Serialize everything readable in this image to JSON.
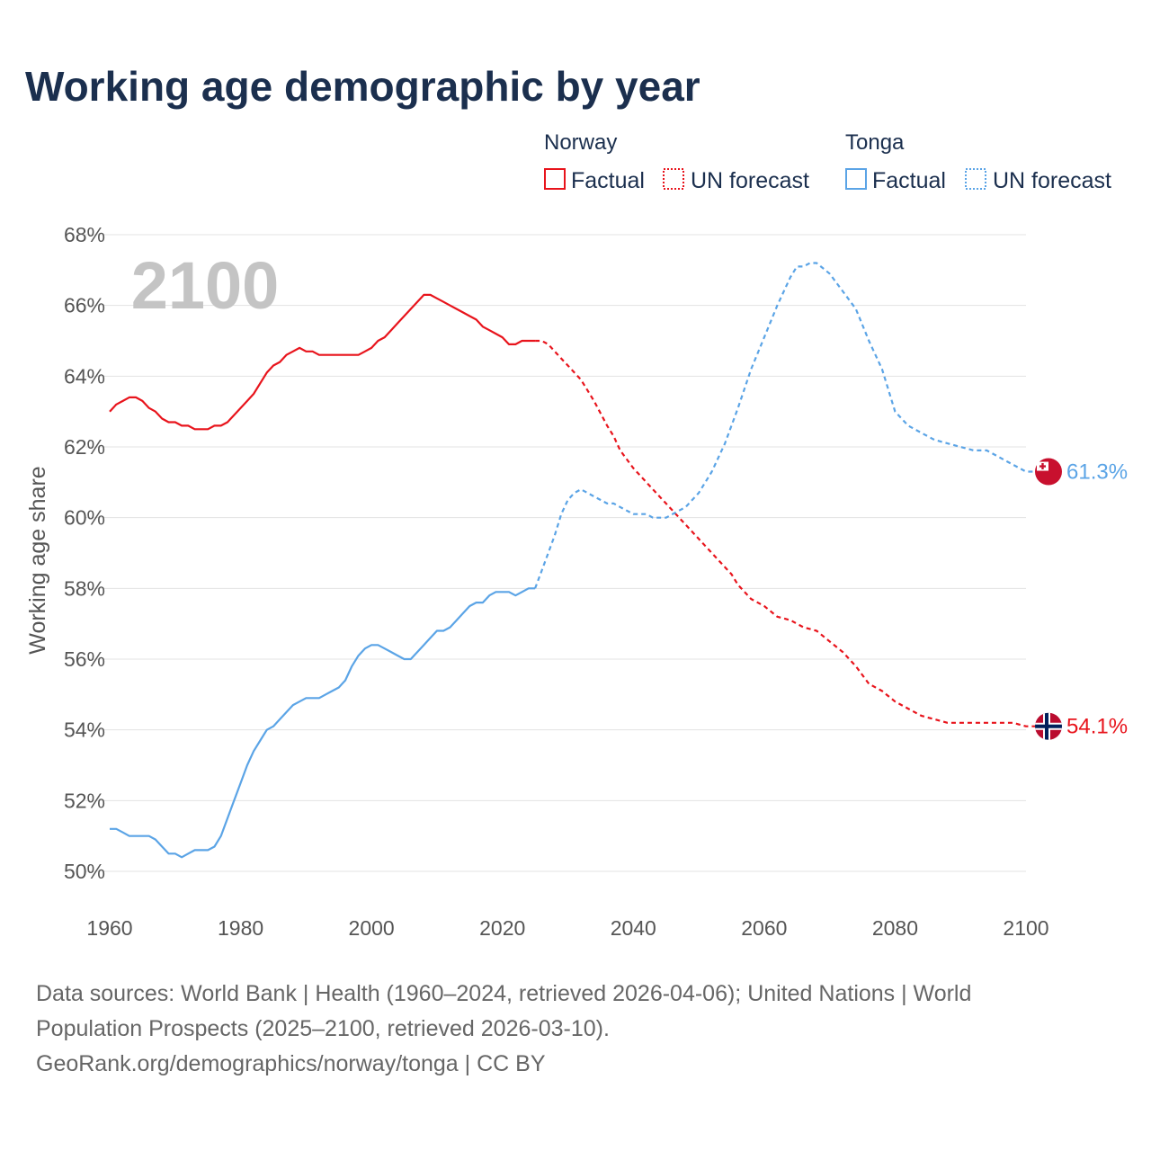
{
  "title": "Working age demographic by year",
  "year_label": "2100",
  "legend": {
    "groups": [
      {
        "name": "Norway",
        "color": "#e8141c",
        "items": [
          {
            "label": "Factual",
            "style": "solid"
          },
          {
            "label": "UN forecast",
            "style": "dotted"
          }
        ]
      },
      {
        "name": "Tonga",
        "color": "#5ba4e6",
        "items": [
          {
            "label": "Factual",
            "style": "solid"
          },
          {
            "label": "UN forecast",
            "style": "dotted"
          }
        ]
      }
    ]
  },
  "end_labels": {
    "norway": "54.1%",
    "tonga": "61.3%"
  },
  "flags": {
    "norway": "norway-flag-icon",
    "tonga": "tonga-flag-icon"
  },
  "source": {
    "line1": "Data sources: World Bank | Health (1960–2024, retrieved 2026-04-06); United Nations | World",
    "line2": "Population Prospects (2025–2100, retrieved 2026-03-10).",
    "line3": "GeoRank.org/demographics/norway/tonga | CC BY"
  },
  "chart_data": {
    "type": "line",
    "title": "Working age demographic by year",
    "xlabel": "",
    "ylabel": "Working age share",
    "xlim": [
      1960,
      2103
    ],
    "ylim": [
      49,
      69
    ],
    "x_ticks": [
      "1960",
      "1980",
      "2000",
      "2020",
      "2040",
      "2060",
      "2080",
      "2100"
    ],
    "y_ticks": [
      "50%",
      "52%",
      "54%",
      "56%",
      "58%",
      "60%",
      "62%",
      "64%",
      "66%",
      "68%"
    ],
    "forecast_start": 2025,
    "series": [
      {
        "name": "Norway",
        "color": "#e8141c",
        "final_value": 54.1,
        "points": [
          [
            1960,
            63.0
          ],
          [
            1961,
            63.2
          ],
          [
            1962,
            63.3
          ],
          [
            1963,
            63.4
          ],
          [
            1964,
            63.4
          ],
          [
            1965,
            63.3
          ],
          [
            1966,
            63.1
          ],
          [
            1967,
            63.0
          ],
          [
            1968,
            62.8
          ],
          [
            1969,
            62.7
          ],
          [
            1970,
            62.7
          ],
          [
            1971,
            62.6
          ],
          [
            1972,
            62.6
          ],
          [
            1973,
            62.5
          ],
          [
            1974,
            62.5
          ],
          [
            1975,
            62.5
          ],
          [
            1976,
            62.6
          ],
          [
            1977,
            62.6
          ],
          [
            1978,
            62.7
          ],
          [
            1979,
            62.9
          ],
          [
            1980,
            63.1
          ],
          [
            1981,
            63.3
          ],
          [
            1982,
            63.5
          ],
          [
            1983,
            63.8
          ],
          [
            1984,
            64.1
          ],
          [
            1985,
            64.3
          ],
          [
            1986,
            64.4
          ],
          [
            1987,
            64.6
          ],
          [
            1988,
            64.7
          ],
          [
            1989,
            64.8
          ],
          [
            1990,
            64.7
          ],
          [
            1991,
            64.7
          ],
          [
            1992,
            64.6
          ],
          [
            1993,
            64.6
          ],
          [
            1994,
            64.6
          ],
          [
            1995,
            64.6
          ],
          [
            1996,
            64.6
          ],
          [
            1997,
            64.6
          ],
          [
            1998,
            64.6
          ],
          [
            1999,
            64.7
          ],
          [
            2000,
            64.8
          ],
          [
            2001,
            65.0
          ],
          [
            2002,
            65.1
          ],
          [
            2003,
            65.3
          ],
          [
            2004,
            65.5
          ],
          [
            2005,
            65.7
          ],
          [
            2006,
            65.9
          ],
          [
            2007,
            66.1
          ],
          [
            2008,
            66.3
          ],
          [
            2009,
            66.3
          ],
          [
            2010,
            66.2
          ],
          [
            2011,
            66.1
          ],
          [
            2012,
            66.0
          ],
          [
            2013,
            65.9
          ],
          [
            2014,
            65.8
          ],
          [
            2015,
            65.7
          ],
          [
            2016,
            65.6
          ],
          [
            2017,
            65.4
          ],
          [
            2018,
            65.3
          ],
          [
            2019,
            65.2
          ],
          [
            2020,
            65.1
          ],
          [
            2021,
            64.9
          ],
          [
            2022,
            64.9
          ],
          [
            2023,
            65.0
          ],
          [
            2024,
            65.0
          ],
          [
            2025,
            65.0
          ],
          [
            2026,
            65.0
          ],
          [
            2027,
            64.9
          ],
          [
            2028,
            64.7
          ],
          [
            2029,
            64.5
          ],
          [
            2030,
            64.3
          ],
          [
            2032,
            63.9
          ],
          [
            2034,
            63.3
          ],
          [
            2036,
            62.6
          ],
          [
            2037,
            62.3
          ],
          [
            2038,
            61.9
          ],
          [
            2040,
            61.4
          ],
          [
            2042,
            61.0
          ],
          [
            2044,
            60.6
          ],
          [
            2046,
            60.2
          ],
          [
            2048,
            59.8
          ],
          [
            2050,
            59.4
          ],
          [
            2052,
            59.0
          ],
          [
            2054,
            58.6
          ],
          [
            2055,
            58.4
          ],
          [
            2056,
            58.1
          ],
          [
            2058,
            57.7
          ],
          [
            2060,
            57.5
          ],
          [
            2062,
            57.2
          ],
          [
            2064,
            57.1
          ],
          [
            2066,
            56.9
          ],
          [
            2068,
            56.8
          ],
          [
            2070,
            56.5
          ],
          [
            2072,
            56.2
          ],
          [
            2074,
            55.8
          ],
          [
            2076,
            55.3
          ],
          [
            2078,
            55.1
          ],
          [
            2080,
            54.8
          ],
          [
            2082,
            54.6
          ],
          [
            2084,
            54.4
          ],
          [
            2086,
            54.3
          ],
          [
            2088,
            54.2
          ],
          [
            2090,
            54.2
          ],
          [
            2094,
            54.2
          ],
          [
            2098,
            54.2
          ],
          [
            2100,
            54.1
          ],
          [
            2102,
            54.1
          ]
        ]
      },
      {
        "name": "Tonga",
        "color": "#5ba4e6",
        "final_value": 61.3,
        "points": [
          [
            1960,
            51.2
          ],
          [
            1961,
            51.2
          ],
          [
            1962,
            51.1
          ],
          [
            1963,
            51.0
          ],
          [
            1964,
            51.0
          ],
          [
            1965,
            51.0
          ],
          [
            1966,
            51.0
          ],
          [
            1967,
            50.9
          ],
          [
            1968,
            50.7
          ],
          [
            1969,
            50.5
          ],
          [
            1970,
            50.5
          ],
          [
            1971,
            50.4
          ],
          [
            1972,
            50.5
          ],
          [
            1973,
            50.6
          ],
          [
            1974,
            50.6
          ],
          [
            1975,
            50.6
          ],
          [
            1976,
            50.7
          ],
          [
            1977,
            51.0
          ],
          [
            1978,
            51.5
          ],
          [
            1979,
            52.0
          ],
          [
            1980,
            52.5
          ],
          [
            1981,
            53.0
          ],
          [
            1982,
            53.4
          ],
          [
            1983,
            53.7
          ],
          [
            1984,
            54.0
          ],
          [
            1985,
            54.1
          ],
          [
            1986,
            54.3
          ],
          [
            1987,
            54.5
          ],
          [
            1988,
            54.7
          ],
          [
            1989,
            54.8
          ],
          [
            1990,
            54.9
          ],
          [
            1991,
            54.9
          ],
          [
            1992,
            54.9
          ],
          [
            1993,
            55.0
          ],
          [
            1994,
            55.1
          ],
          [
            1995,
            55.2
          ],
          [
            1996,
            55.4
          ],
          [
            1997,
            55.8
          ],
          [
            1998,
            56.1
          ],
          [
            1999,
            56.3
          ],
          [
            2000,
            56.4
          ],
          [
            2001,
            56.4
          ],
          [
            2002,
            56.3
          ],
          [
            2003,
            56.2
          ],
          [
            2004,
            56.1
          ],
          [
            2005,
            56.0
          ],
          [
            2006,
            56.0
          ],
          [
            2007,
            56.2
          ],
          [
            2008,
            56.4
          ],
          [
            2009,
            56.6
          ],
          [
            2010,
            56.8
          ],
          [
            2011,
            56.8
          ],
          [
            2012,
            56.9
          ],
          [
            2013,
            57.1
          ],
          [
            2014,
            57.3
          ],
          [
            2015,
            57.5
          ],
          [
            2016,
            57.6
          ],
          [
            2017,
            57.6
          ],
          [
            2018,
            57.8
          ],
          [
            2019,
            57.9
          ],
          [
            2020,
            57.9
          ],
          [
            2021,
            57.9
          ],
          [
            2022,
            57.8
          ],
          [
            2023,
            57.9
          ],
          [
            2024,
            58.0
          ],
          [
            2025,
            58.0
          ],
          [
            2026,
            58.5
          ],
          [
            2027,
            59.0
          ],
          [
            2028,
            59.5
          ],
          [
            2029,
            60.1
          ],
          [
            2030,
            60.5
          ],
          [
            2031,
            60.7
          ],
          [
            2032,
            60.8
          ],
          [
            2033,
            60.7
          ],
          [
            2034,
            60.6
          ],
          [
            2035,
            60.5
          ],
          [
            2036,
            60.4
          ],
          [
            2037,
            60.4
          ],
          [
            2038,
            60.3
          ],
          [
            2039,
            60.2
          ],
          [
            2040,
            60.1
          ],
          [
            2041,
            60.1
          ],
          [
            2042,
            60.1
          ],
          [
            2043,
            60.0
          ],
          [
            2044,
            60.0
          ],
          [
            2045,
            60.0
          ],
          [
            2046,
            60.1
          ],
          [
            2048,
            60.3
          ],
          [
            2050,
            60.7
          ],
          [
            2052,
            61.3
          ],
          [
            2054,
            62.1
          ],
          [
            2056,
            63.1
          ],
          [
            2058,
            64.2
          ],
          [
            2060,
            65.1
          ],
          [
            2062,
            66.0
          ],
          [
            2064,
            66.8
          ],
          [
            2065,
            67.1
          ],
          [
            2066,
            67.1
          ],
          [
            2067,
            67.2
          ],
          [
            2068,
            67.2
          ],
          [
            2070,
            66.9
          ],
          [
            2072,
            66.4
          ],
          [
            2074,
            65.9
          ],
          [
            2076,
            65.0
          ],
          [
            2078,
            64.2
          ],
          [
            2080,
            63.0
          ],
          [
            2082,
            62.6
          ],
          [
            2084,
            62.4
          ],
          [
            2086,
            62.2
          ],
          [
            2088,
            62.1
          ],
          [
            2090,
            62.0
          ],
          [
            2092,
            61.9
          ],
          [
            2094,
            61.9
          ],
          [
            2096,
            61.7
          ],
          [
            2098,
            61.5
          ],
          [
            2100,
            61.3
          ],
          [
            2102,
            61.3
          ]
        ]
      }
    ]
  }
}
